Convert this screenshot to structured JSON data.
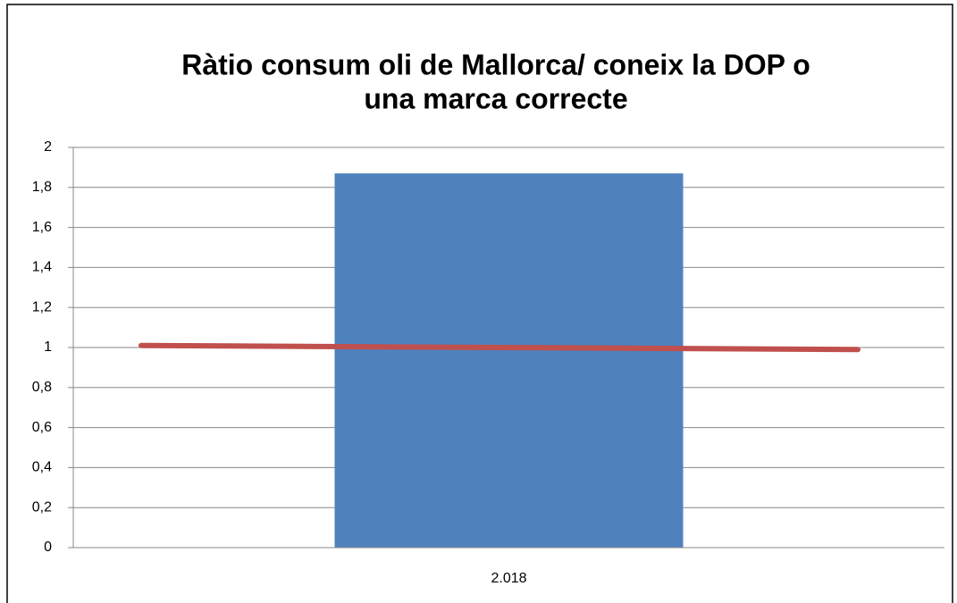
{
  "chart_data": {
    "type": "bar",
    "title": [
      "Ràtio consum oli de Mallorca/ coneix la DOP o",
      "una marca correcte"
    ],
    "categories": [
      "2.018"
    ],
    "values": [
      1.87
    ],
    "color": "#4f81bd",
    "reference_line": {
      "values": [
        1.01,
        0.99
      ],
      "color": "#c0504d"
    },
    "ylim": [
      0,
      2
    ],
    "yticks": [
      0,
      {
        "value": 0.2,
        "label": "0,2"
      },
      {
        "value": 0.4,
        "label": "0,4"
      },
      {
        "value": 0.6,
        "label": "0,6"
      },
      {
        "value": 0.8,
        "label": "0,8"
      },
      1,
      {
        "value": 1.2,
        "label": "1,2"
      },
      {
        "value": 1.4,
        "label": "1,4"
      },
      {
        "value": 1.6,
        "label": "1,6"
      },
      {
        "value": 1.8,
        "label": "1,8"
      },
      2
    ],
    "grid": true
  }
}
